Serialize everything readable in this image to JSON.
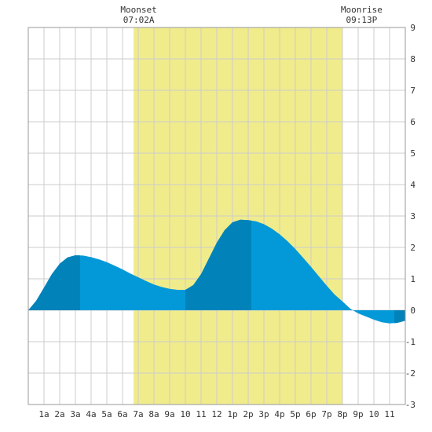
{
  "chart_data": {
    "type": "area",
    "title": "",
    "xlabel": "",
    "ylabel": "",
    "xlim": [
      0,
      24
    ],
    "ylim": [
      -3,
      9
    ],
    "x_ticks": [
      {
        "x": 1,
        "label": "1a"
      },
      {
        "x": 2,
        "label": "2a"
      },
      {
        "x": 3,
        "label": "3a"
      },
      {
        "x": 4,
        "label": "4a"
      },
      {
        "x": 5,
        "label": "5a"
      },
      {
        "x": 6,
        "label": "6a"
      },
      {
        "x": 7,
        "label": "7a"
      },
      {
        "x": 8,
        "label": "8a"
      },
      {
        "x": 9,
        "label": "9a"
      },
      {
        "x": 10,
        "label": "10"
      },
      {
        "x": 11,
        "label": "11"
      },
      {
        "x": 12,
        "label": "12"
      },
      {
        "x": 13,
        "label": "1p"
      },
      {
        "x": 14,
        "label": "2p"
      },
      {
        "x": 15,
        "label": "3p"
      },
      {
        "x": 16,
        "label": "4p"
      },
      {
        "x": 17,
        "label": "5p"
      },
      {
        "x": 18,
        "label": "6p"
      },
      {
        "x": 19,
        "label": "7p"
      },
      {
        "x": 20,
        "label": "8p"
      },
      {
        "x": 21,
        "label": "9p"
      },
      {
        "x": 22,
        "label": "10"
      },
      {
        "x": 23,
        "label": "11"
      }
    ],
    "y_ticks": [
      -3,
      -2,
      -1,
      0,
      1,
      2,
      3,
      4,
      5,
      6,
      7,
      8,
      9
    ],
    "grid": true,
    "daylight_band": {
      "from": 6.7,
      "to": 20.0,
      "color": "#f0ec8c"
    },
    "annotations": [
      {
        "x": 7.03,
        "lines": [
          "Moonset",
          "07:02A"
        ]
      },
      {
        "x": 21.22,
        "lines": [
          "Moonrise",
          "09:13P"
        ]
      }
    ],
    "series": [
      {
        "x": [
          0,
          0.5,
          1,
          1.5,
          2,
          2.5,
          3,
          3.5,
          4,
          4.5,
          5,
          5.5,
          6,
          6.5,
          7,
          7.5,
          8,
          8.5,
          9,
          9.5,
          10,
          10.5,
          11,
          11.5,
          12,
          12.5,
          13,
          13.5,
          14,
          14.5,
          15,
          15.5,
          16,
          16.5,
          17,
          17.5,
          18,
          18.5,
          19,
          19.5,
          20,
          20.5,
          21,
          21.5,
          22,
          22.5,
          23,
          23.5,
          24
        ],
        "values": [
          0.0,
          0.3,
          0.72,
          1.15,
          1.48,
          1.68,
          1.75,
          1.74,
          1.69,
          1.62,
          1.53,
          1.42,
          1.3,
          1.17,
          1.05,
          0.93,
          0.82,
          0.74,
          0.68,
          0.65,
          0.65,
          0.8,
          1.15,
          1.65,
          2.15,
          2.55,
          2.8,
          2.88,
          2.87,
          2.83,
          2.74,
          2.6,
          2.42,
          2.2,
          1.95,
          1.67,
          1.38,
          1.08,
          0.78,
          0.5,
          0.28,
          0.05,
          -0.1,
          -0.2,
          -0.3,
          -0.38,
          -0.42,
          -0.4,
          -0.33
        ]
      }
    ],
    "shaded_segments": [
      [
        0,
        3.3
      ],
      [
        10,
        14.2
      ],
      [
        23.3,
        24
      ]
    ],
    "colors": {
      "fill": "#0399d9",
      "fill_dark": "#0183b9",
      "grid": "#cccccc",
      "border": "#999999"
    }
  }
}
